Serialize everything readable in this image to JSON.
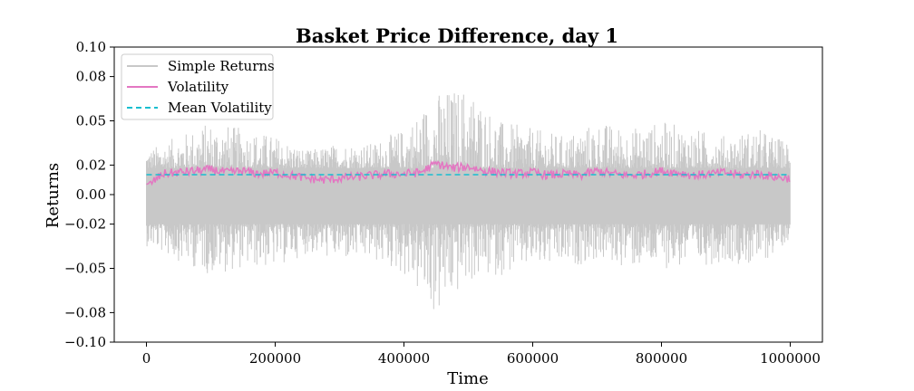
{
  "chart_data": {
    "type": "line",
    "title": "Basket Price Difference, day 1",
    "xlabel": "Time",
    "ylabel": "Returns",
    "xlim": [
      -50000,
      1050000
    ],
    "ylim": [
      -0.1,
      0.1
    ],
    "x_ticks": [
      0,
      200000,
      400000,
      600000,
      800000,
      1000000
    ],
    "x_tick_labels": [
      "0",
      "200000",
      "400000",
      "600000",
      "800000",
      "1000000"
    ],
    "y_ticks": [
      0.1,
      0.08,
      0.05,
      0.02,
      0.0,
      -0.02,
      -0.05,
      -0.08,
      -0.1
    ],
    "y_tick_labels": [
      "0.10",
      "0.08",
      "0.05",
      "0.02",
      "0.00",
      "−0.02",
      "−0.05",
      "−0.08",
      "−0.10"
    ],
    "grid": false,
    "legend_position": "top-left",
    "series": [
      {
        "name": "Simple Returns",
        "color": "#c8c8c8",
        "style": "solid",
        "x_range": [
          0,
          1000000
        ],
        "envelope": {
          "x": [
            0,
            50000,
            100000,
            150000,
            200000,
            250000,
            300000,
            350000,
            400000,
            450000,
            500000,
            550000,
            600000,
            650000,
            700000,
            750000,
            800000,
            850000,
            900000,
            950000,
            1000000
          ],
          "upper": [
            0.03,
            0.04,
            0.05,
            0.045,
            0.04,
            0.03,
            0.035,
            0.035,
            0.045,
            0.07,
            0.075,
            0.05,
            0.045,
            0.04,
            0.05,
            0.045,
            0.05,
            0.045,
            0.04,
            0.045,
            0.035
          ],
          "lower": [
            -0.035,
            -0.045,
            -0.055,
            -0.05,
            -0.05,
            -0.04,
            -0.045,
            -0.045,
            -0.055,
            -0.085,
            -0.06,
            -0.055,
            -0.05,
            -0.05,
            -0.045,
            -0.05,
            -0.05,
            -0.05,
            -0.045,
            -0.05,
            -0.03
          ]
        }
      },
      {
        "name": "Volatility",
        "color": "#e377c2",
        "style": "solid",
        "x": [
          0,
          25000,
          50000,
          75000,
          100000,
          125000,
          150000,
          175000,
          200000,
          225000,
          250000,
          275000,
          300000,
          325000,
          350000,
          375000,
          400000,
          425000,
          450000,
          475000,
          500000,
          525000,
          550000,
          575000,
          600000,
          625000,
          650000,
          675000,
          700000,
          725000,
          750000,
          775000,
          800000,
          825000,
          850000,
          875000,
          900000,
          925000,
          950000,
          975000,
          1000000
        ],
        "values": [
          0.005,
          0.014,
          0.015,
          0.016,
          0.017,
          0.015,
          0.016,
          0.014,
          0.015,
          0.013,
          0.011,
          0.01,
          0.011,
          0.012,
          0.013,
          0.014,
          0.014,
          0.015,
          0.021,
          0.018,
          0.019,
          0.016,
          0.015,
          0.014,
          0.015,
          0.013,
          0.014,
          0.013,
          0.016,
          0.014,
          0.013,
          0.014,
          0.016,
          0.015,
          0.013,
          0.014,
          0.015,
          0.013,
          0.014,
          0.012,
          0.011
        ]
      },
      {
        "name": "Mean Volatility",
        "color": "#17becf",
        "style": "dashed",
        "x": [
          0,
          1000000
        ],
        "values": [
          0.0135,
          0.0135
        ]
      }
    ]
  }
}
